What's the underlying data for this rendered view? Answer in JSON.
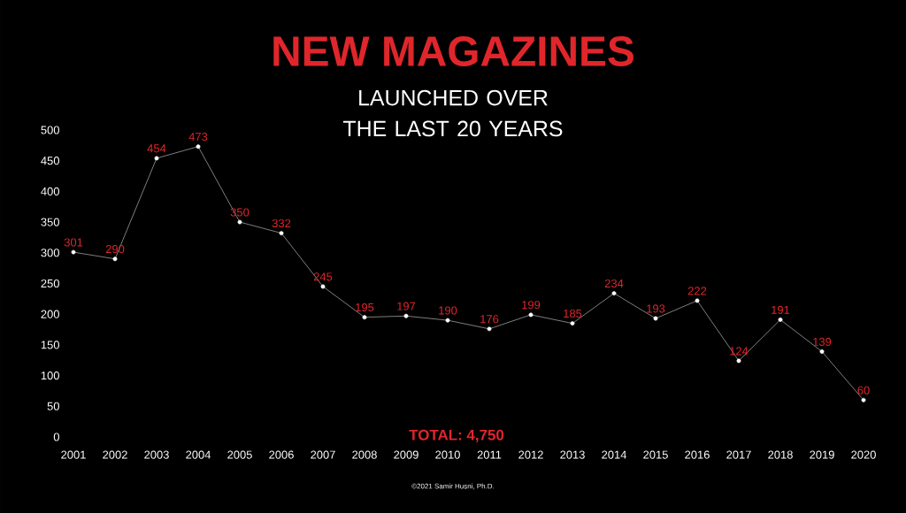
{
  "chart_data": {
    "type": "line",
    "title": "NEW MAGAZINES",
    "subtitle": "LAUNCHED OVER THE LAST 20 YEARS",
    "categories": [
      "2001",
      "2002",
      "2003",
      "2004",
      "2005",
      "2006",
      "2007",
      "2008",
      "2009",
      "2010",
      "2011",
      "2012",
      "2013",
      "2014",
      "2015",
      "2016",
      "2017",
      "2018",
      "2019",
      "2020"
    ],
    "values": [
      301,
      290,
      454,
      473,
      350,
      332,
      245,
      195,
      197,
      190,
      176,
      199,
      185,
      234,
      193,
      222,
      124,
      191,
      139,
      60
    ],
    "color": "#ffffff",
    "marker": "circle",
    "data_labels": true,
    "grid": false,
    "ylim": [
      0,
      500
    ],
    "yticks": [
      0,
      50,
      100,
      150,
      200,
      250,
      300,
      350,
      400,
      450,
      500
    ],
    "annotations": [
      "TOTAL: 4,750",
      "©2021 Samir Husni, Ph.D."
    ]
  }
}
